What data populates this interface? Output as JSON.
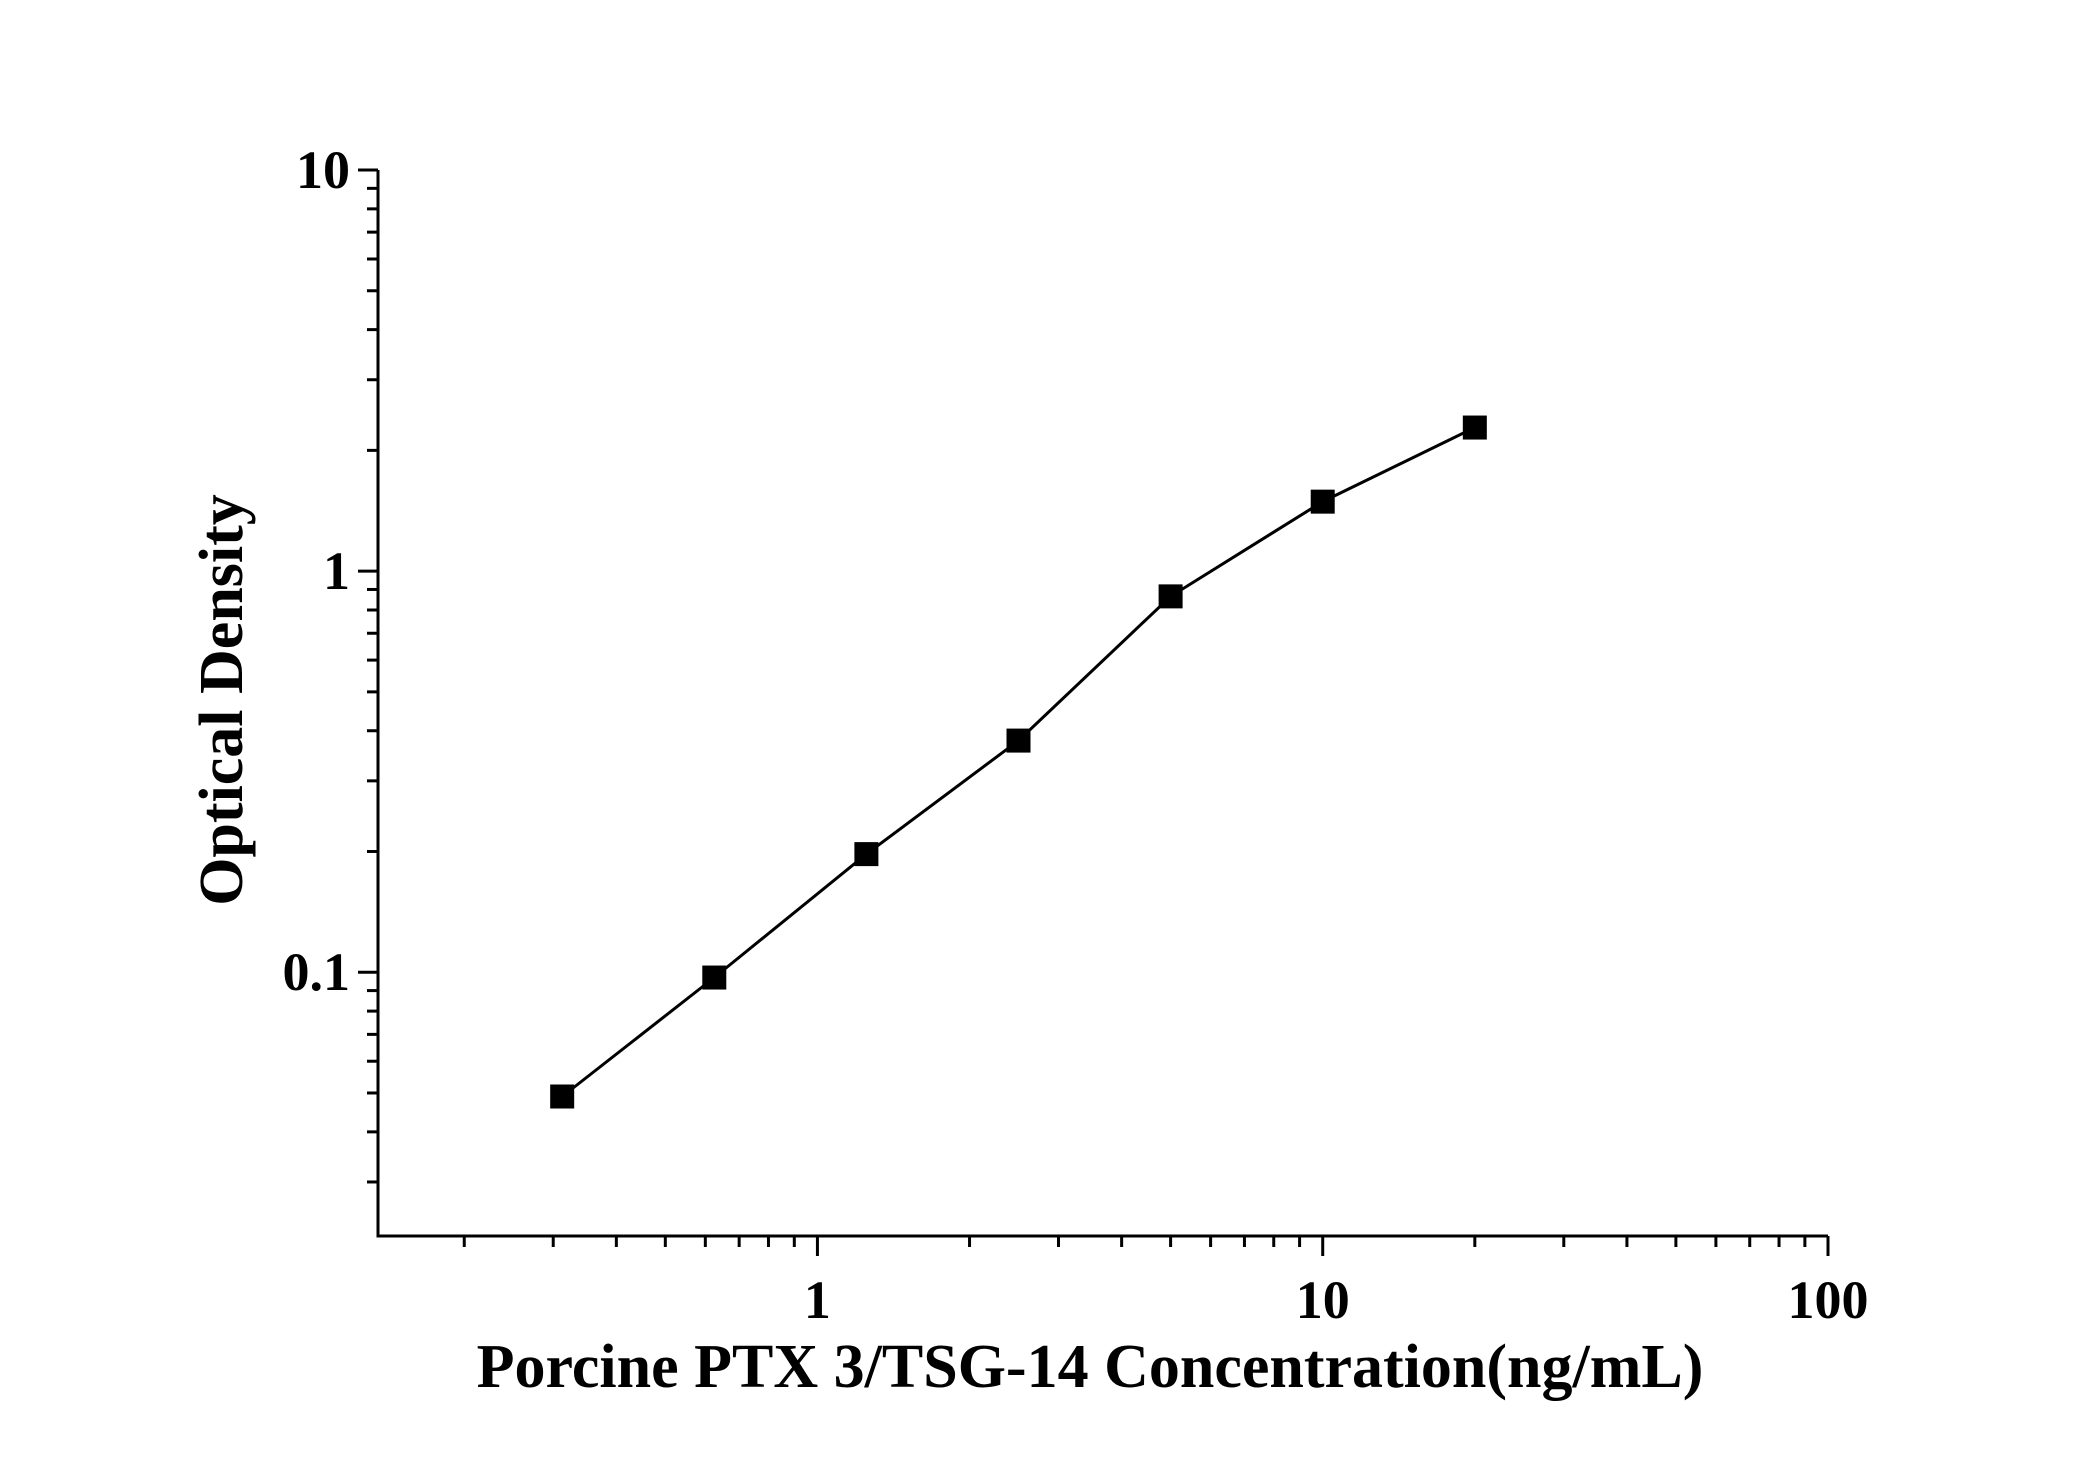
{
  "chart_data": {
    "type": "scatter",
    "xscale": "log",
    "yscale": "log",
    "xlim": [
      0.135,
      100
    ],
    "ylim": [
      0.022,
      10
    ],
    "xlabel": "Porcine PTX 3/TSG-14 Concentration(ng/mL)",
    "ylabel": "Optical Density",
    "x_ticks": [
      {
        "value": 1,
        "label": "1"
      },
      {
        "value": 10,
        "label": "10"
      },
      {
        "value": 100,
        "label": "100"
      }
    ],
    "y_ticks": [
      {
        "value": 0.1,
        "label": "0.1"
      },
      {
        "value": 1,
        "label": "1"
      },
      {
        "value": 10,
        "label": "10"
      }
    ],
    "grid": false,
    "marker": "square",
    "line": "connected",
    "series": [
      {
        "x": [
          0.3125,
          0.625,
          1.25,
          2.5,
          5,
          10,
          20
        ],
        "y": [
          0.049,
          0.097,
          0.197,
          0.378,
          0.865,
          1.49,
          2.28
        ]
      }
    ]
  }
}
